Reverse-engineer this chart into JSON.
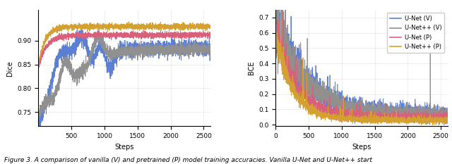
{
  "dice_ylim": [
    0.72,
    0.965
  ],
  "dice_yticks": [
    0.75,
    0.8,
    0.85,
    0.9
  ],
  "bce_ylim": [
    -0.01,
    0.75
  ],
  "bce_yticks": [
    0,
    0.1,
    0.2,
    0.3,
    0.4,
    0.5,
    0.6,
    0.7
  ],
  "steps": 2600,
  "xlabel": "Steps",
  "dice_ylabel": "Dice",
  "bce_ylabel": "BCE",
  "legend_labels": [
    "U-Net (V)",
    "U-Net++ (V)",
    "U-Net (P)",
    "U-Net++ (P)"
  ],
  "colors": [
    "#5B7FD4",
    "#909090",
    "#D9607A",
    "#D4A030"
  ],
  "caption": "Figure 3. A comparison of vanilla (V) and pretrained (P) model training accuracies. Vanilla U-Net and U-Net++ start",
  "caption_fontsize": 6.5,
  "figsize": [
    6.4,
    2.33
  ],
  "dpi": 100
}
